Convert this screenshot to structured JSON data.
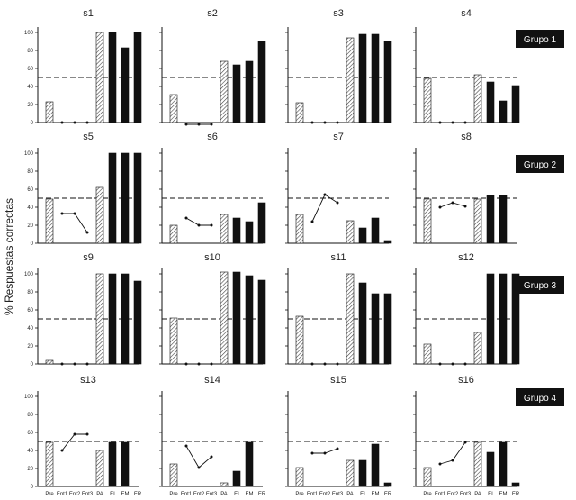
{
  "chart_data": {
    "type": "bar",
    "ylabel": "% Respuestas correctas",
    "categories": [
      "Pre",
      "Ent1",
      "Ent2",
      "Ent3",
      "PA",
      "EI",
      "EM",
      "ER"
    ],
    "ylim": [
      0,
      100
    ],
    "yticks": [
      0,
      20,
      40,
      60,
      80,
      100
    ],
    "criterion_line": 50,
    "groups": [
      {
        "label": "Grupo 1",
        "subjects": [
          "s1",
          "s2",
          "s3",
          "s4"
        ]
      },
      {
        "label": "Grupo 2",
        "subjects": [
          "s5",
          "s6",
          "s7",
          "s8"
        ]
      },
      {
        "label": "Grupo 3",
        "subjects": [
          "s9",
          "s10",
          "s11",
          "s12"
        ]
      },
      {
        "label": "Grupo 4",
        "subjects": [
          "s13",
          "s14",
          "s15",
          "s16"
        ]
      }
    ],
    "panels": [
      {
        "title": "s1",
        "pre": 23,
        "training": [
          0,
          0,
          0
        ],
        "pa": 100,
        "ei": 100,
        "em": 83,
        "er": 100
      },
      {
        "title": "s2",
        "pre": 31,
        "training": [
          -2,
          -2,
          -2
        ],
        "pa": 68,
        "ei": 64,
        "em": 68,
        "er": 90
      },
      {
        "title": "s3",
        "pre": 22,
        "training": [
          0,
          0,
          0
        ],
        "pa": 94,
        "ei": 98,
        "em": 98,
        "er": 90
      },
      {
        "title": "s4",
        "pre": 49,
        "training": [
          0,
          0,
          0
        ],
        "pa": 53,
        "ei": 45,
        "em": 24,
        "er": 41
      },
      {
        "title": "s5",
        "pre": 49,
        "training": [
          33,
          33,
          12
        ],
        "pa": 62,
        "ei": 100,
        "em": 100,
        "er": 100
      },
      {
        "title": "s6",
        "pre": 20,
        "training": [
          28,
          20,
          20
        ],
        "pa": 32,
        "ei": 28,
        "em": 24,
        "er": 45
      },
      {
        "title": "s7",
        "pre": 32,
        "training": [
          24,
          54,
          45
        ],
        "pa": 25,
        "ei": 17,
        "em": 28,
        "er": 3
      },
      {
        "title": "s8",
        "pre": 49,
        "training": [
          40,
          45,
          41
        ],
        "pa": 49,
        "ei": 53,
        "em": 53,
        "er": null
      },
      {
        "title": "s9",
        "pre": 4,
        "training": [
          0,
          0,
          0
        ],
        "pa": 100,
        "ei": 100,
        "em": 100,
        "er": 92
      },
      {
        "title": "s10",
        "pre": 51,
        "training": [
          0,
          0,
          0
        ],
        "pa": 102,
        "ei": 102,
        "em": 98,
        "er": 93
      },
      {
        "title": "s11",
        "pre": 53,
        "training": [
          0,
          0,
          0
        ],
        "pa": 100,
        "ei": 90,
        "em": 78,
        "er": 78
      },
      {
        "title": "s12",
        "pre": 22,
        "training": [
          0,
          0,
          0
        ],
        "pa": 35,
        "ei": 100,
        "em": 100,
        "er": 100
      },
      {
        "title": "s13",
        "pre": 49,
        "training": [
          40,
          58,
          58
        ],
        "pa": 40,
        "ei": 49,
        "em": 49,
        "er": null
      },
      {
        "title": "s14",
        "pre": 25,
        "training": [
          45,
          21,
          33
        ],
        "pa": 4,
        "ei": 17,
        "em": 49,
        "er": null
      },
      {
        "title": "s15",
        "pre": 21,
        "training": [
          37,
          37,
          42
        ],
        "pa": 29,
        "ei": 29,
        "em": 47,
        "er": 4
      },
      {
        "title": "s16",
        "pre": 21,
        "training": [
          25,
          29,
          49
        ],
        "pa": 49,
        "ei": 38,
        "em": 49,
        "er": 4
      }
    ]
  }
}
